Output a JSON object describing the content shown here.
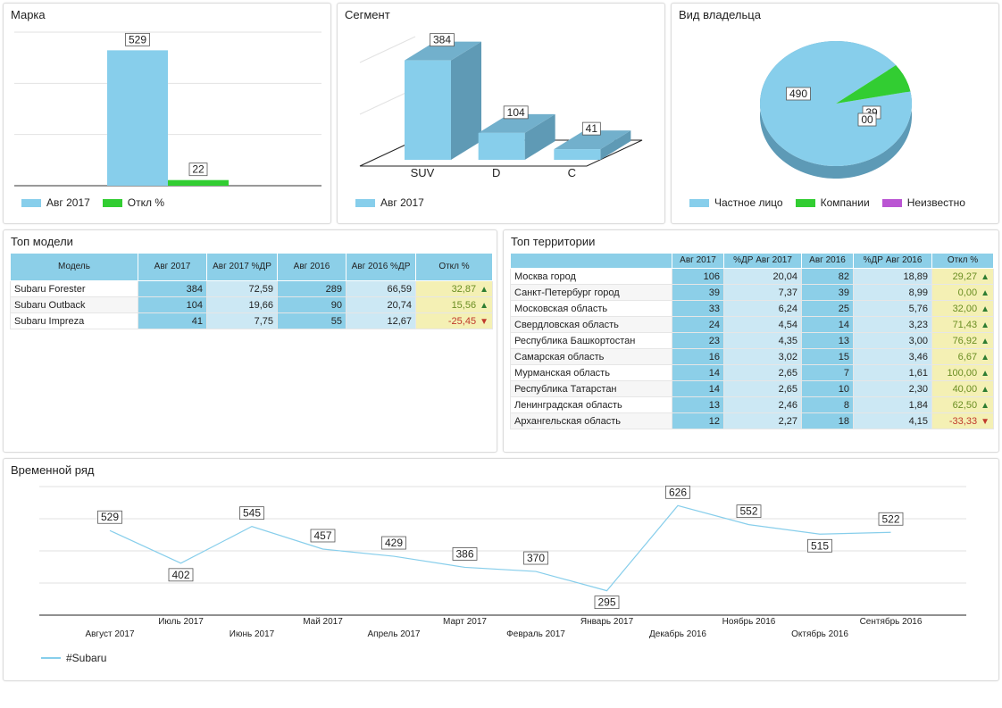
{
  "brand": {
    "title": "Марка",
    "legend": [
      {
        "label": "Авг 2017",
        "color": "#87ceeb"
      },
      {
        "label": "Откл %",
        "color": "#32cd32"
      }
    ],
    "chart_data": {
      "type": "bar",
      "categories": [
        ""
      ],
      "series": [
        {
          "name": "Авг 2017",
          "values": [
            529
          ]
        },
        {
          "name": "Откл %",
          "values": [
            22
          ]
        }
      ],
      "ylim": [
        0,
        600
      ],
      "grid": true
    }
  },
  "segment": {
    "title": "Сегмент",
    "legend": [
      {
        "label": "Авг 2017",
        "color": "#87ceeb"
      }
    ],
    "chart_data": {
      "type": "bar",
      "categories": [
        "SUV",
        "D",
        "C"
      ],
      "series": [
        {
          "name": "Авг 2017",
          "values": [
            384,
            104,
            41
          ]
        }
      ],
      "ylim": [
        0,
        400
      ],
      "grid": true
    }
  },
  "owner": {
    "title": "Вид владельца",
    "legend": [
      {
        "label": "Частное лицо",
        "color": "#87ceeb"
      },
      {
        "label": "Компании",
        "color": "#32cd32"
      },
      {
        "label": "Неизвестно",
        "color": "#ba55d3"
      }
    ],
    "chart_data": {
      "type": "pie",
      "labels": [
        "Частное лицо",
        "Компании",
        "Неизвестно"
      ],
      "values": [
        490,
        39,
        0
      ],
      "data_labels": [
        "490",
        "39",
        "00"
      ]
    }
  },
  "models": {
    "title": "Топ модели",
    "headers": [
      "Модель",
      "Авг 2017",
      "Авг 2017 %ДР",
      "Авг 2016",
      "Авг 2016 %ДР",
      "Откл %"
    ],
    "rows": [
      {
        "name": "Subaru Forester",
        "v1": "384",
        "v2": "72,59",
        "v3": "289",
        "v4": "66,59",
        "dev": "32,87",
        "dir": "up"
      },
      {
        "name": "Subaru Outback",
        "v1": "104",
        "v2": "19,66",
        "v3": "90",
        "v4": "20,74",
        "dev": "15,56",
        "dir": "up"
      },
      {
        "name": "Subaru Impreza",
        "v1": "41",
        "v2": "7,75",
        "v3": "55",
        "v4": "12,67",
        "dev": "-25,45",
        "dir": "down"
      }
    ]
  },
  "territories": {
    "title": "Топ территории",
    "headers": [
      "",
      "Авг 2017",
      "%ДР Авг 2017",
      "Авг 2016",
      "%ДР Авг 2016",
      "Откл %"
    ],
    "rows": [
      {
        "name": "Москва город",
        "v1": "106",
        "v2": "20,04",
        "v3": "82",
        "v4": "18,89",
        "dev": "29,27",
        "dir": "up"
      },
      {
        "name": "Санкт-Петербург город",
        "v1": "39",
        "v2": "7,37",
        "v3": "39",
        "v4": "8,99",
        "dev": "0,00",
        "dir": "up"
      },
      {
        "name": "Московская область",
        "v1": "33",
        "v2": "6,24",
        "v3": "25",
        "v4": "5,76",
        "dev": "32,00",
        "dir": "up"
      },
      {
        "name": "Свердловская область",
        "v1": "24",
        "v2": "4,54",
        "v3": "14",
        "v4": "3,23",
        "dev": "71,43",
        "dir": "up"
      },
      {
        "name": "Республика Башкортостан",
        "v1": "23",
        "v2": "4,35",
        "v3": "13",
        "v4": "3,00",
        "dev": "76,92",
        "dir": "up"
      },
      {
        "name": "Самарская область",
        "v1": "16",
        "v2": "3,02",
        "v3": "15",
        "v4": "3,46",
        "dev": "6,67",
        "dir": "up"
      },
      {
        "name": "Мурманская область",
        "v1": "14",
        "v2": "2,65",
        "v3": "7",
        "v4": "1,61",
        "dev": "100,00",
        "dir": "up"
      },
      {
        "name": "Республика Татарстан",
        "v1": "14",
        "v2": "2,65",
        "v3": "10",
        "v4": "2,30",
        "dev": "40,00",
        "dir": "up"
      },
      {
        "name": "Ленинградская область",
        "v1": "13",
        "v2": "2,46",
        "v3": "8",
        "v4": "1,84",
        "dev": "62,50",
        "dir": "up"
      },
      {
        "name": "Архангельская область",
        "v1": "12",
        "v2": "2,27",
        "v3": "18",
        "v4": "4,15",
        "dev": "-33,33",
        "dir": "down"
      }
    ]
  },
  "timeseries": {
    "title": "Временной ряд",
    "legend": [
      {
        "label": "#Subaru",
        "color": "#87ceeb"
      }
    ],
    "chart_data": {
      "type": "line",
      "x": [
        "Август 2017",
        "Июль 2017",
        "Июнь 2017",
        "Май 2017",
        "Апрель 2017",
        "Март 2017",
        "Февраль 2017",
        "Январь 2017",
        "Декабрь 2016",
        "Ноябрь 2016",
        "Октябрь 2016",
        "Сентябрь 2016"
      ],
      "series": [
        {
          "name": "#Subaru",
          "values": [
            529,
            402,
            545,
            457,
            429,
            386,
            370,
            295,
            626,
            552,
            515,
            522
          ]
        }
      ],
      "ylim": [
        200,
        700
      ],
      "grid": true
    }
  }
}
